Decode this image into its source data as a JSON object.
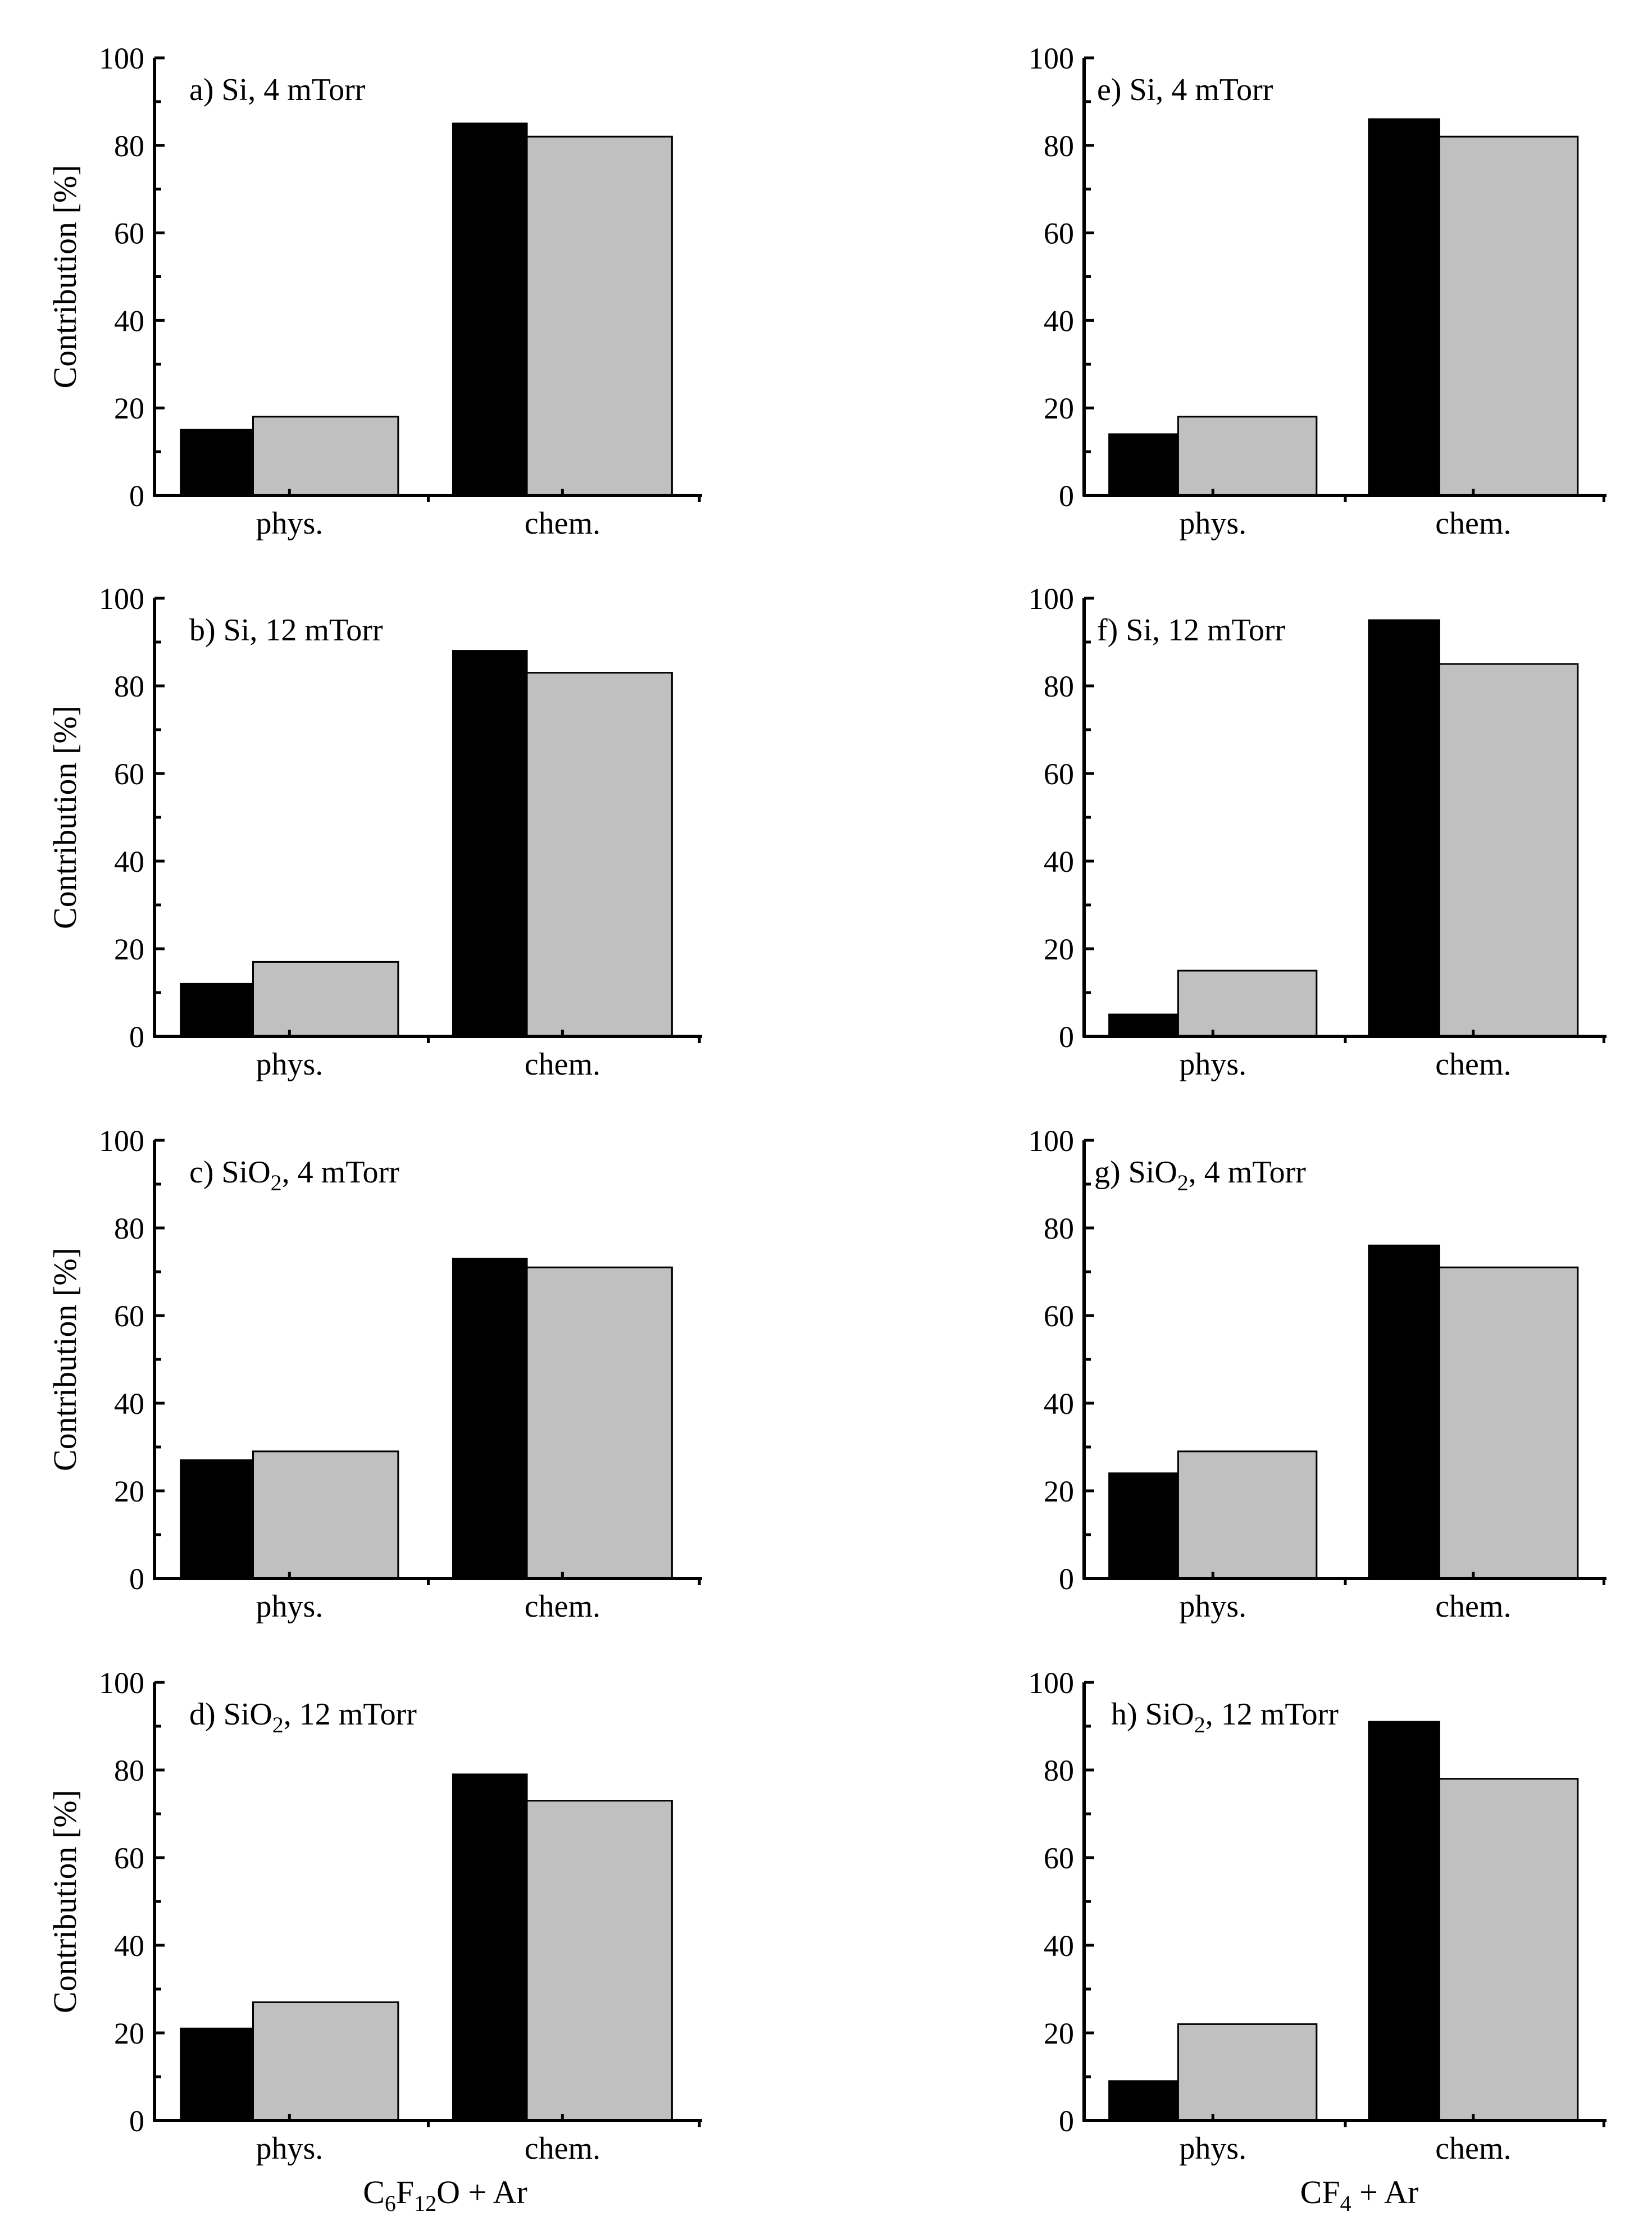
{
  "figure": {
    "column_labels": [
      {
        "main": "C",
        "parts": [
          [
            "C",
            ""
          ],
          [
            "6",
            "sub"
          ],
          [
            "F",
            ""
          ],
          [
            "12",
            "sub"
          ],
          [
            "O + Ar",
            ""
          ]
        ],
        "text": "C6F12O + Ar"
      },
      {
        "parts": [
          [
            "CF",
            ""
          ],
          [
            "4",
            "sub"
          ],
          [
            " + Ar",
            ""
          ]
        ],
        "text": "CF4 + Ar"
      }
    ]
  },
  "chart_data": [
    {
      "type": "bar",
      "panel": "a",
      "title_parts": [
        [
          "a) Si, 4 mTorr",
          ""
        ]
      ],
      "title": "a) Si, 4 mTorr",
      "categories": [
        "phys.",
        "chem."
      ],
      "series": [
        {
          "name": "black",
          "color": "#000000",
          "values": [
            15,
            85
          ]
        },
        {
          "name": "gray",
          "color": "#c0c0c0",
          "values": [
            18,
            82
          ]
        }
      ],
      "ylabel": "Contribution [%]",
      "ylim": [
        0,
        100
      ],
      "yticks": [
        "0",
        "20",
        "40",
        "60",
        "80",
        "100"
      ]
    },
    {
      "type": "bar",
      "panel": "b",
      "title_parts": [
        [
          "b) Si, 12 mTorr",
          ""
        ]
      ],
      "title": "b) Si, 12 mTorr",
      "categories": [
        "phys.",
        "chem."
      ],
      "series": [
        {
          "name": "black",
          "color": "#000000",
          "values": [
            12,
            88
          ]
        },
        {
          "name": "gray",
          "color": "#c0c0c0",
          "values": [
            17,
            83
          ]
        }
      ],
      "ylabel": "Contribution [%]",
      "ylim": [
        0,
        100
      ],
      "yticks": [
        "0",
        "20",
        "40",
        "60",
        "80",
        "100"
      ]
    },
    {
      "type": "bar",
      "panel": "c",
      "title_parts": [
        [
          "c) SiO",
          ""
        ],
        [
          "2",
          "sub"
        ],
        [
          ", 4 mTorr",
          ""
        ]
      ],
      "title": "c) SiO2, 4 mTorr",
      "categories": [
        "phys.",
        "chem."
      ],
      "series": [
        {
          "name": "black",
          "color": "#000000",
          "values": [
            27,
            73
          ]
        },
        {
          "name": "gray",
          "color": "#c0c0c0",
          "values": [
            29,
            71
          ]
        }
      ],
      "ylabel": "Contribution [%]",
      "ylim": [
        0,
        100
      ],
      "yticks": [
        "0",
        "20",
        "40",
        "60",
        "80",
        "100"
      ]
    },
    {
      "type": "bar",
      "panel": "d",
      "title_parts": [
        [
          "d) SiO",
          ""
        ],
        [
          "2",
          "sub"
        ],
        [
          ", 12 mTorr",
          ""
        ]
      ],
      "title": "d) SiO2, 12 mTorr",
      "categories": [
        "phys.",
        "chem."
      ],
      "series": [
        {
          "name": "black",
          "color": "#000000",
          "values": [
            21,
            79
          ]
        },
        {
          "name": "gray",
          "color": "#c0c0c0",
          "values": [
            27,
            73
          ]
        }
      ],
      "ylabel": "Contribution [%]",
      "ylim": [
        0,
        100
      ],
      "yticks": [
        "0",
        "20",
        "40",
        "60",
        "80",
        "100"
      ]
    },
    {
      "type": "bar",
      "panel": "e",
      "title_parts": [
        [
          "e) Si, 4 mTorr",
          ""
        ]
      ],
      "title": "e) Si, 4 mTorr",
      "categories": [
        "phys.",
        "chem."
      ],
      "series": [
        {
          "name": "black",
          "color": "#000000",
          "values": [
            14,
            86
          ]
        },
        {
          "name": "gray",
          "color": "#c0c0c0",
          "values": [
            18,
            82
          ]
        }
      ],
      "ylabel": "",
      "ylim": [
        0,
        100
      ],
      "yticks": [
        "0",
        "20",
        "40",
        "60",
        "80",
        "100"
      ]
    },
    {
      "type": "bar",
      "panel": "f",
      "title_parts": [
        [
          "f) Si, 12 mTorr",
          ""
        ]
      ],
      "title": "f) Si, 12 mTorr",
      "categories": [
        "phys.",
        "chem."
      ],
      "series": [
        {
          "name": "black",
          "color": "#000000",
          "values": [
            5,
            95
          ]
        },
        {
          "name": "gray",
          "color": "#c0c0c0",
          "values": [
            15,
            85
          ]
        }
      ],
      "ylabel": "",
      "ylim": [
        0,
        100
      ],
      "yticks": [
        "0",
        "20",
        "40",
        "60",
        "80",
        "100"
      ]
    },
    {
      "type": "bar",
      "panel": "g",
      "title_parts": [
        [
          "g) SiO",
          ""
        ],
        [
          "2",
          "sub"
        ],
        [
          ", 4 mTorr",
          ""
        ]
      ],
      "title": "g) SiO2, 4 mTorr",
      "categories": [
        "phys.",
        "chem."
      ],
      "series": [
        {
          "name": "black",
          "color": "#000000",
          "values": [
            24,
            76
          ]
        },
        {
          "name": "gray",
          "color": "#c0c0c0",
          "values": [
            29,
            71
          ]
        }
      ],
      "ylabel": "",
      "ylim": [
        0,
        100
      ],
      "yticks": [
        "0",
        "20",
        "40",
        "60",
        "80",
        "100"
      ]
    },
    {
      "type": "bar",
      "panel": "h",
      "title_parts": [
        [
          "h) SiO",
          ""
        ],
        [
          "2",
          "sub"
        ],
        [
          ", 12 mTorr",
          ""
        ]
      ],
      "title": "h) SiO2, 12 mTorr",
      "categories": [
        "phys.",
        "chem."
      ],
      "series": [
        {
          "name": "black",
          "color": "#000000",
          "values": [
            9,
            91
          ]
        },
        {
          "name": "gray",
          "color": "#c0c0c0",
          "values": [
            22,
            78
          ]
        }
      ],
      "ylabel": "",
      "ylim": [
        0,
        100
      ],
      "yticks": [
        "0",
        "20",
        "40",
        "60",
        "80",
        "100"
      ]
    }
  ]
}
